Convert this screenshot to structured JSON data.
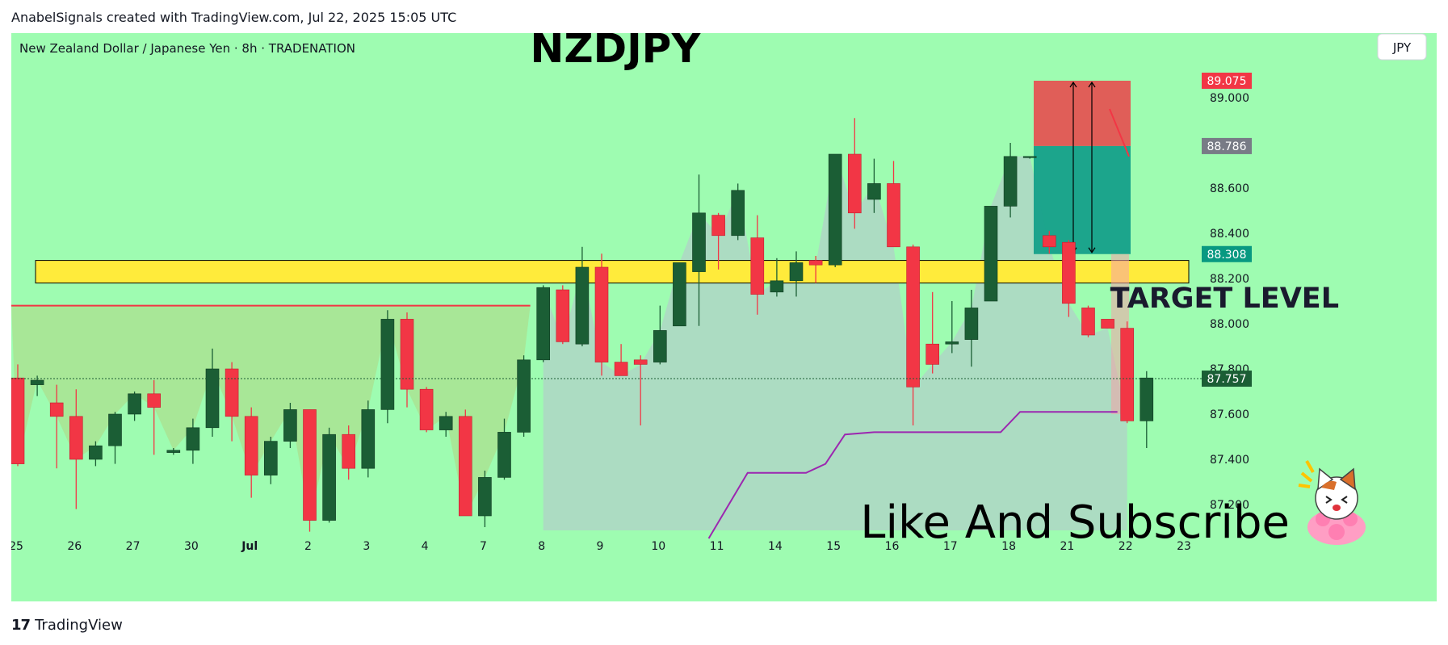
{
  "header": {
    "attribution": "AnabelSignals created with TradingView.com, Jul 22, 2025 15:05 UTC"
  },
  "footer": {
    "logo_text": "TradingView",
    "logo_mark": "17"
  },
  "colors": {
    "background": "#9efcb1",
    "up": "#1b5e35",
    "down": "#f23645",
    "zone": "#ffeb3b",
    "purple": "#9c27b0",
    "stop": "#e74c4f",
    "target": "#15a08a"
  },
  "chart_data": {
    "type": "candlestick",
    "title": "NZDJPY",
    "symbol_info": "New Zealand Dollar / Japanese Yen · 8h · TRADENATION",
    "currency": "JPY",
    "ylim": [
      87.0,
      89.2
    ],
    "y_ticks": [
      "89.000",
      "88.600",
      "88.400",
      "88.200",
      "88.000",
      "87.800",
      "87.600",
      "87.400",
      "87.200"
    ],
    "x_labels": [
      {
        "i": 0,
        "label": "25"
      },
      {
        "i": 3,
        "label": "26"
      },
      {
        "i": 6,
        "label": "27"
      },
      {
        "i": 9,
        "label": "30"
      },
      {
        "i": 12,
        "label": "Jul"
      },
      {
        "i": 15,
        "label": "2"
      },
      {
        "i": 18,
        "label": "3"
      },
      {
        "i": 21,
        "label": "4"
      },
      {
        "i": 24,
        "label": "7"
      },
      {
        "i": 27,
        "label": "8"
      },
      {
        "i": 30,
        "label": "9"
      },
      {
        "i": 33,
        "label": "10"
      },
      {
        "i": 36,
        "label": "11"
      },
      {
        "i": 39,
        "label": "14"
      },
      {
        "i": 42,
        "label": "15"
      },
      {
        "i": 45,
        "label": "16"
      },
      {
        "i": 48,
        "label": "17"
      },
      {
        "i": 51,
        "label": "18"
      },
      {
        "i": 54,
        "label": "21"
      },
      {
        "i": 57,
        "label": "22"
      },
      {
        "i": 60,
        "label": "23"
      }
    ],
    "candles": [
      [
        87.76,
        87.82,
        87.37,
        87.38
      ],
      [
        87.73,
        87.77,
        87.68,
        87.75
      ],
      [
        87.65,
        87.73,
        87.36,
        87.59
      ],
      [
        87.59,
        87.71,
        87.18,
        87.4
      ],
      [
        87.4,
        87.48,
        87.37,
        87.46
      ],
      [
        87.46,
        87.61,
        87.38,
        87.6
      ],
      [
        87.6,
        87.7,
        87.57,
        87.69
      ],
      [
        87.69,
        87.75,
        87.42,
        87.63
      ],
      [
        87.43,
        87.45,
        87.42,
        87.44
      ],
      [
        87.44,
        87.58,
        87.38,
        87.54
      ],
      [
        87.54,
        87.89,
        87.5,
        87.8
      ],
      [
        87.8,
        87.83,
        87.48,
        87.59
      ],
      [
        87.59,
        87.63,
        87.23,
        87.33
      ],
      [
        87.33,
        87.5,
        87.29,
        87.48
      ],
      [
        87.48,
        87.65,
        87.45,
        87.62
      ],
      [
        87.62,
        87.62,
        87.08,
        87.13
      ],
      [
        87.13,
        87.54,
        87.12,
        87.51
      ],
      [
        87.51,
        87.55,
        87.31,
        87.36
      ],
      [
        87.36,
        87.66,
        87.32,
        87.62
      ],
      [
        87.62,
        88.06,
        87.56,
        88.02
      ],
      [
        88.02,
        88.05,
        87.63,
        87.71
      ],
      [
        87.71,
        87.72,
        87.52,
        87.53
      ],
      [
        87.53,
        87.61,
        87.5,
        87.59
      ],
      [
        87.59,
        87.62,
        87.15,
        87.15
      ],
      [
        87.15,
        87.35,
        87.1,
        87.32
      ],
      [
        87.32,
        87.58,
        87.31,
        87.52
      ],
      [
        87.52,
        87.86,
        87.5,
        87.84
      ],
      [
        87.84,
        88.17,
        87.83,
        88.16
      ],
      [
        88.15,
        88.17,
        87.91,
        87.92
      ],
      [
        87.91,
        88.34,
        87.9,
        88.25
      ],
      [
        88.25,
        88.31,
        87.77,
        87.83
      ],
      [
        87.83,
        87.91,
        87.77,
        87.77
      ],
      [
        87.84,
        87.86,
        87.55,
        87.82
      ],
      [
        87.83,
        88.08,
        87.82,
        87.97
      ],
      [
        87.99,
        88.27,
        87.99,
        88.27
      ],
      [
        88.23,
        88.66,
        87.99,
        88.49
      ],
      [
        88.48,
        88.49,
        88.24,
        88.39
      ],
      [
        88.39,
        88.62,
        88.37,
        88.59
      ],
      [
        88.38,
        88.48,
        88.04,
        88.13
      ],
      [
        88.14,
        88.29,
        88.12,
        88.19
      ],
      [
        88.19,
        88.32,
        88.12,
        88.27
      ],
      [
        88.28,
        88.3,
        88.18,
        88.26
      ],
      [
        88.26,
        88.75,
        88.25,
        88.75
      ],
      [
        88.75,
        88.91,
        88.42,
        88.49
      ],
      [
        88.55,
        88.73,
        88.49,
        88.62
      ],
      [
        88.62,
        88.72,
        88.36,
        88.34
      ],
      [
        88.34,
        88.35,
        87.55,
        87.72
      ],
      [
        87.91,
        88.14,
        87.78,
        87.82
      ],
      [
        87.91,
        88.1,
        87.87,
        87.92
      ],
      [
        87.93,
        88.15,
        87.81,
        88.07
      ],
      [
        88.1,
        88.52,
        88.1,
        88.52
      ],
      [
        88.52,
        88.8,
        88.47,
        88.74
      ],
      [
        88.74,
        88.74,
        88.73,
        88.74
      ],
      [
        88.39,
        88.41,
        88.31,
        88.34
      ],
      [
        88.36,
        88.37,
        88.03,
        88.09
      ],
      [
        88.07,
        88.08,
        87.94,
        87.95
      ],
      [
        88.02,
        88.02,
        87.98,
        87.98
      ],
      [
        87.98,
        88.01,
        87.56,
        87.57
      ],
      [
        87.57,
        87.79,
        87.45,
        87.76
      ]
    ],
    "supply_zone": {
      "top": 88.28,
      "bottom": 88.18
    },
    "left_resistance_price": 88.08,
    "current_price": 87.757,
    "trade_box": {
      "stop": 89.075,
      "entry": 88.786,
      "target": 88.308
    },
    "purple_line": [
      [
        35.5,
        87.05
      ],
      [
        37.5,
        87.34
      ],
      [
        40.5,
        87.34
      ],
      [
        41.5,
        87.38
      ],
      [
        42.5,
        87.51
      ],
      [
        44,
        87.52
      ],
      [
        50.5,
        87.52
      ],
      [
        51.5,
        87.61
      ],
      [
        56.5,
        87.61
      ]
    ],
    "price_labels": [
      {
        "value": "89.075",
        "price": 89.075,
        "color": "#f23645"
      },
      {
        "value": "88.786",
        "price": 88.786,
        "color": "#787b86"
      },
      {
        "value": "88.308",
        "price": 88.308,
        "color": "#089981"
      },
      {
        "value": "87.757",
        "price": 87.757,
        "color": "#1b5e35"
      }
    ],
    "annotations": {
      "zone_label": "TARGET LEVEL",
      "promo": "Like And Subscribe"
    }
  }
}
